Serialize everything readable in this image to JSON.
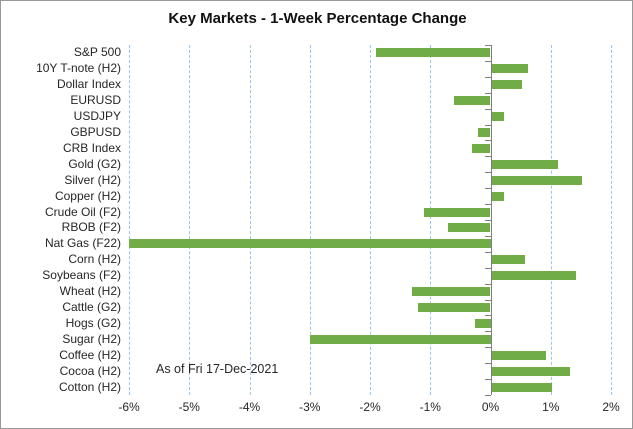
{
  "title": "Key Markets - 1-Week Percentage Change",
  "annotation": "As of Fri 17-Dec-2021",
  "chart_data": {
    "type": "bar",
    "orientation": "horizontal",
    "title": "Key Markets - 1-Week Percentage Change",
    "annotation": "As of Fri 17-Dec-2021",
    "categories": [
      "S&P 500",
      "10Y T-note (H2)",
      "Dollar Index",
      "EURUSD",
      "USDJPY",
      "GBPUSD",
      "CRB Index",
      "Gold (G2)",
      "Silver (H2)",
      "Copper (H2)",
      "Crude Oil (F2)",
      "RBOB (F2)",
      "Nat Gas (F22)",
      "Corn (H2)",
      "Soybeans (F2)",
      "Wheat (H2)",
      "Cattle (G2)",
      "Hogs (G2)",
      "Sugar (H2)",
      "Coffee (H2)",
      "Cocoa (H2)",
      "Cotton (H2)"
    ],
    "values": [
      -1.9,
      0.6,
      0.5,
      -0.6,
      0.2,
      -0.2,
      -0.3,
      1.1,
      1.5,
      0.2,
      -1.1,
      -0.7,
      -6.0,
      0.55,
      1.4,
      -1.3,
      -1.2,
      -0.25,
      -3.0,
      0.9,
      1.3,
      1.0
    ],
    "value_unit": "%",
    "xlabel": "",
    "ylabel": "",
    "xlim": [
      -6,
      2
    ],
    "x_ticks": [
      -6,
      -5,
      -4,
      -3,
      -2,
      -1,
      0,
      1,
      2
    ],
    "x_tick_labels": [
      "-6%",
      "-5%",
      "-4%",
      "-3%",
      "-2%",
      "-1%",
      "0%",
      "1%",
      "2%"
    ],
    "grid": "vertical-dashed",
    "legend": "none",
    "colors": {
      "bar": "#70AD47",
      "gridline": "#9DC3E6",
      "axis": "#808080",
      "text": "#262626",
      "background": "#FFFFFF"
    }
  }
}
